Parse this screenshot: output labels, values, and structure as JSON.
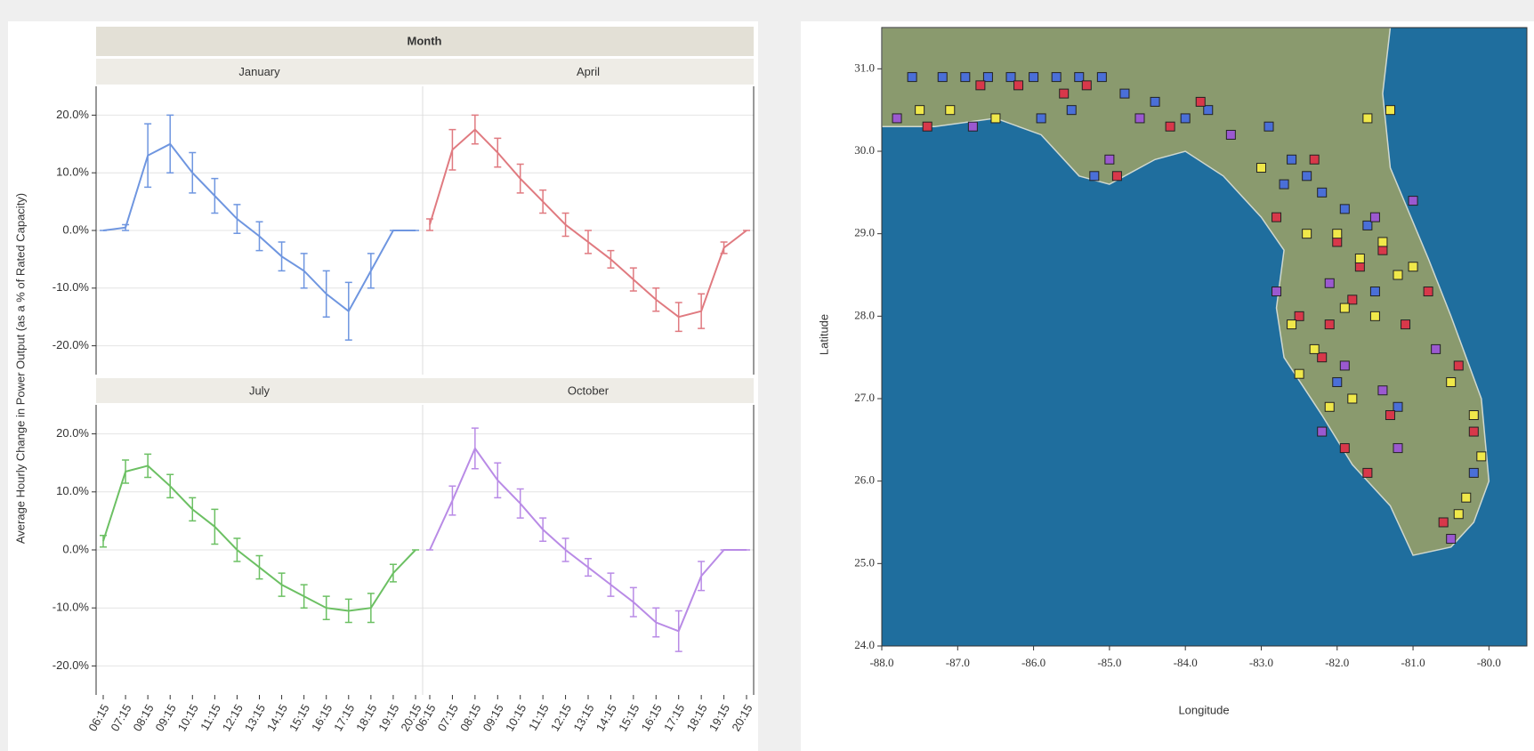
{
  "chart_data": [
    {
      "type": "line",
      "title": "Month",
      "ylabel": "Average Hourly Change in Power Output (as a % of Rated Capacity)",
      "categories": [
        "06:15",
        "07:15",
        "08:15",
        "09:15",
        "10:15",
        "11:15",
        "12:15",
        "13:15",
        "14:15",
        "15:15",
        "16:15",
        "17:15",
        "18:15",
        "19:15",
        "20:15"
      ],
      "ylim": [
        -25,
        25
      ],
      "yticks": [
        {
          "value": 20,
          "label": "20.0%"
        },
        {
          "value": 10,
          "label": "10.0%"
        },
        {
          "value": 0,
          "label": "0.0%"
        },
        {
          "value": -10,
          "label": "-10.0%"
        },
        {
          "value": -20,
          "label": "-20.0%"
        }
      ],
      "grid": true,
      "series": [
        {
          "name": "January",
          "color": "#6f96e0",
          "values": [
            0,
            0.5,
            13,
            15,
            10,
            6,
            2,
            -1,
            -4.5,
            -7,
            -11,
            -14,
            -7,
            0,
            0
          ],
          "errors": [
            0,
            0.5,
            5.5,
            5,
            3.5,
            3,
            2.5,
            2.5,
            2.5,
            3,
            4,
            5,
            3,
            0,
            0
          ]
        },
        {
          "name": "April",
          "color": "#e07a80",
          "values": [
            1,
            14,
            17.5,
            13.5,
            9,
            5,
            1,
            -2,
            -5,
            -8.5,
            -12,
            -15,
            -14,
            -3,
            0
          ],
          "errors": [
            1,
            3.5,
            2.5,
            2.5,
            2.5,
            2,
            2,
            2,
            1.5,
            2,
            2,
            2.5,
            3,
            1,
            0
          ]
        },
        {
          "name": "July",
          "color": "#6cc063",
          "values": [
            1.5,
            13.5,
            14.5,
            11,
            7,
            4,
            0,
            -3,
            -6,
            -8,
            -10,
            -10.5,
            -10,
            -4,
            0
          ],
          "errors": [
            1,
            2,
            2,
            2,
            2,
            3,
            2,
            2,
            2,
            2,
            2,
            2,
            2.5,
            1.5,
            0
          ]
        },
        {
          "name": "October",
          "color": "#b98be6",
          "values": [
            0,
            8.5,
            17.5,
            12,
            8,
            3.5,
            0,
            -3,
            -6,
            -9,
            -12.5,
            -14,
            -4.5,
            0,
            0
          ],
          "errors": [
            0,
            2.5,
            3.5,
            3,
            2.5,
            2,
            2,
            1.5,
            2,
            2.5,
            2.5,
            3.5,
            2.5,
            0,
            0
          ]
        }
      ]
    },
    {
      "type": "scatter",
      "xlabel": "Longitude",
      "ylabel": "Latitude",
      "xlim": [
        -88,
        -79.5
      ],
      "ylim": [
        24,
        31.5
      ],
      "xticks": [
        {
          "value": -88,
          "label": "-88.0"
        },
        {
          "value": -87,
          "label": "-87.0"
        },
        {
          "value": -86,
          "label": "-86.0"
        },
        {
          "value": -85,
          "label": "-85.0"
        },
        {
          "value": -84,
          "label": "-84.0"
        },
        {
          "value": -83,
          "label": "-83.0"
        },
        {
          "value": -82,
          "label": "-82.0"
        },
        {
          "value": -81,
          "label": "-81.0"
        },
        {
          "value": -80,
          "label": "-80.0"
        }
      ],
      "yticks": [
        {
          "value": 31,
          "label": "31.0"
        },
        {
          "value": 30,
          "label": "30.0"
        },
        {
          "value": 29,
          "label": "29.0"
        },
        {
          "value": 28,
          "label": "28.0"
        },
        {
          "value": 27,
          "label": "27.0"
        },
        {
          "value": 26,
          "label": "26.0"
        },
        {
          "value": 25,
          "label": "25.0"
        },
        {
          "value": 24,
          "label": "24.0"
        }
      ],
      "series": [
        {
          "color": "#4a6fd8",
          "x": [
            -87.6,
            -87.2,
            -86.9,
            -86.6,
            -86.3,
            -86.0,
            -85.7,
            -85.4,
            -85.1,
            -84.8,
            -84.4,
            -85.9,
            -85.5,
            -85.2,
            -84.0,
            -83.7,
            -82.9,
            -82.6,
            -82.4,
            -82.2,
            -81.9,
            -81.6,
            -82.7,
            -81.5,
            -82.0,
            -81.2,
            -80.2
          ],
          "y": [
            30.9,
            30.9,
            30.9,
            30.9,
            30.9,
            30.9,
            30.9,
            30.9,
            30.9,
            30.7,
            30.6,
            30.4,
            30.5,
            29.7,
            30.4,
            30.5,
            30.3,
            29.9,
            29.7,
            29.5,
            29.3,
            29.1,
            29.6,
            28.3,
            27.2,
            26.9,
            26.1
          ]
        },
        {
          "color": "#d8384a",
          "x": [
            -87.4,
            -86.7,
            -86.2,
            -85.6,
            -85.3,
            -84.9,
            -84.2,
            -83.8,
            -82.8,
            -82.3,
            -82.0,
            -81.7,
            -81.4,
            -82.5,
            -82.1,
            -81.8,
            -81.1,
            -80.8,
            -80.4,
            -80.2,
            -81.6,
            -81.9,
            -82.2,
            -80.6,
            -81.3
          ],
          "y": [
            30.3,
            30.8,
            30.8,
            30.7,
            30.8,
            29.7,
            30.3,
            30.6,
            29.2,
            29.9,
            28.9,
            28.6,
            28.8,
            28.0,
            27.9,
            28.2,
            27.9,
            28.3,
            27.4,
            26.6,
            26.1,
            26.4,
            27.5,
            25.5,
            26.8
          ]
        },
        {
          "color": "#f0e84a",
          "x": [
            -87.5,
            -87.1,
            -86.5,
            -83.0,
            -82.4,
            -82.0,
            -81.7,
            -81.4,
            -81.2,
            -82.6,
            -82.3,
            -81.9,
            -81.5,
            -81.0,
            -80.5,
            -80.2,
            -80.1,
            -80.3,
            -81.3,
            -81.6,
            -82.5,
            -82.1,
            -81.8,
            -80.4
          ],
          "y": [
            30.5,
            30.5,
            30.4,
            29.8,
            29.0,
            29.0,
            28.7,
            28.9,
            28.5,
            27.9,
            27.6,
            28.1,
            28.0,
            28.6,
            27.2,
            26.8,
            26.3,
            25.8,
            30.5,
            30.4,
            27.3,
            26.9,
            27.0,
            25.6
          ]
        },
        {
          "color": "#9b59d0",
          "x": [
            -87.8,
            -86.8,
            -85.0,
            -84.6,
            -83.4,
            -82.8,
            -82.1,
            -81.5,
            -81.0,
            -81.9,
            -82.2,
            -80.7,
            -80.5,
            -81.4,
            -81.2
          ],
          "y": [
            30.4,
            30.3,
            29.9,
            30.4,
            30.2,
            28.3,
            28.4,
            29.2,
            29.4,
            27.4,
            26.6,
            27.6,
            25.3,
            27.1,
            26.4
          ]
        }
      ]
    }
  ]
}
